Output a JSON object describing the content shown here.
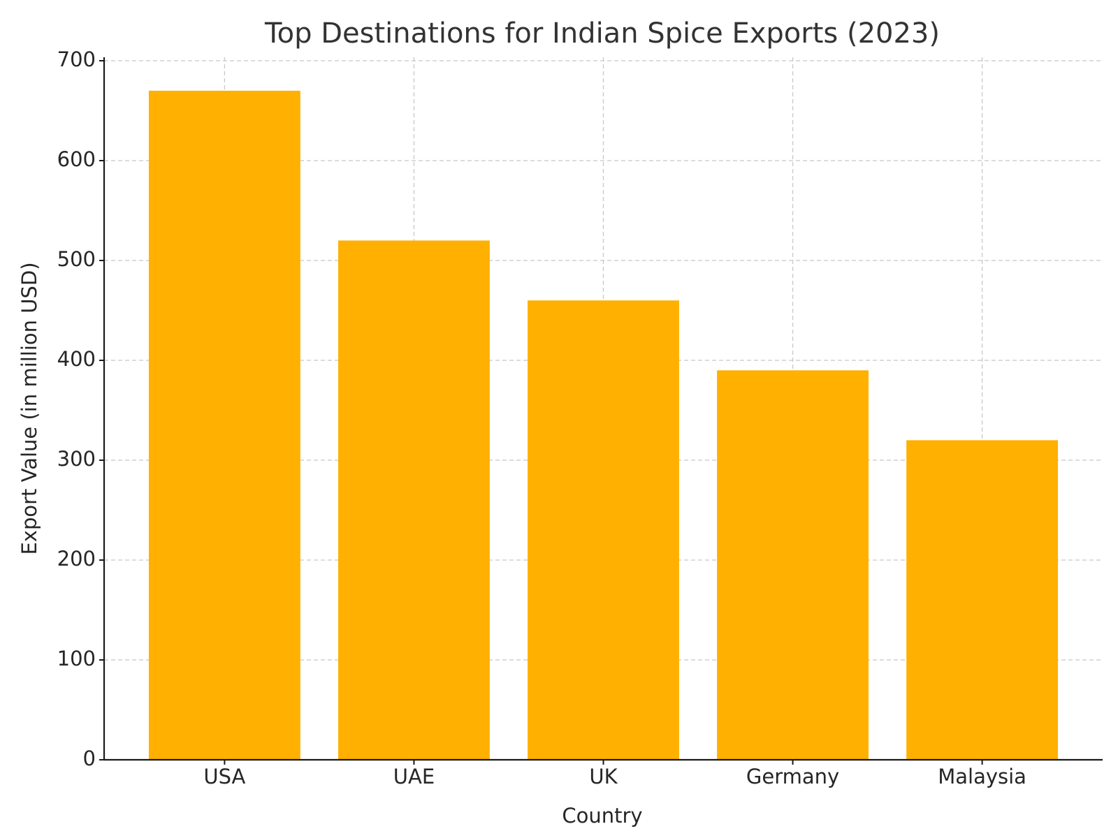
{
  "chart_data": {
    "type": "bar",
    "title": "Top Destinations for Indian Spice Exports (2023)",
    "x_label": "Country",
    "y_label": "Export Value (in million USD)",
    "categories": [
      "USA",
      "UAE",
      "UK",
      "Germany",
      "Malaysia"
    ],
    "values": [
      670,
      520,
      460,
      390,
      320
    ],
    "color": "#ffb000",
    "ylim": [
      0,
      703.5
    ],
    "yticks": [
      0,
      100,
      200,
      300,
      400,
      500,
      600,
      700
    ],
    "grid": true
  }
}
